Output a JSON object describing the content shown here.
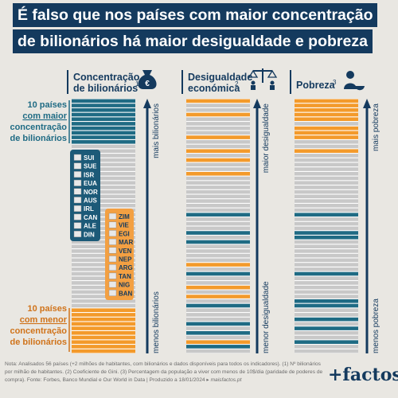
{
  "title": {
    "line1": "É falso que nos países com maior concentração",
    "line2": "de bilionários há maior desigualdade e pobreza"
  },
  "chart_data": {
    "type": "table",
    "columns": [
      {
        "label_lines": [
          "Concentração",
          "de bilionários"
        ],
        "sup": "1",
        "icon": "money-bag-euro-icon",
        "axis_top": "mais bilionários",
        "axis_bottom": "menos bilionários",
        "rows": [
          "t",
          "t",
          "t",
          "t",
          "t",
          "t",
          "t",
          "t",
          "t",
          "t",
          "g",
          "g",
          "g",
          "g",
          "g",
          "g",
          "g",
          "g",
          "g",
          "g",
          "g",
          "g",
          "g",
          "g",
          "g",
          "g",
          "g",
          "g",
          "g",
          "g",
          "g",
          "g",
          "g",
          "g",
          "g",
          "g",
          "g",
          "g",
          "g",
          "g",
          "g",
          "g",
          "g",
          "g",
          "g",
          "g",
          "o",
          "o",
          "o",
          "o",
          "o",
          "o",
          "o",
          "o",
          "o",
          "o"
        ]
      },
      {
        "label_lines": [
          "Desigualdade",
          "económica"
        ],
        "sup": "2",
        "icon": "balance-scale-people-icon",
        "axis_top": "maior desigualdade",
        "axis_bottom": "menor desigualdade",
        "rows": [
          "o",
          "g",
          "g",
          "o",
          "g",
          "g",
          "g",
          "g",
          "o",
          "g",
          "g",
          "o",
          "g",
          "o",
          "g",
          "g",
          "o",
          "g",
          "g",
          "g",
          "g",
          "g",
          "g",
          "g",
          "g",
          "t",
          "g",
          "g",
          "g",
          "t",
          "g",
          "t",
          "g",
          "g",
          "g",
          "g",
          "o",
          "g",
          "t",
          "g",
          "g",
          "o",
          "g",
          "o",
          "g",
          "t",
          "g",
          "g",
          "g",
          "t",
          "g",
          "t",
          "g",
          "o",
          "t",
          "g"
        ]
      },
      {
        "label_lines": [
          "Pobreza"
        ],
        "sup": "3",
        "icon": "poor-person-bowl-icon",
        "axis_top": "mais pobreza",
        "axis_bottom": "menos pobreza",
        "rows": [
          "o",
          "o",
          "o",
          "o",
          "o",
          "g",
          "o",
          "o",
          "o",
          "g",
          "g",
          "o",
          "g",
          "g",
          "g",
          "g",
          "g",
          "g",
          "g",
          "g",
          "g",
          "g",
          "g",
          "g",
          "g",
          "t",
          "g",
          "g",
          "g",
          "t",
          "t",
          "g",
          "g",
          "g",
          "g",
          "g",
          "g",
          "g",
          "t",
          "g",
          "g",
          "g",
          "g",
          "g",
          "t",
          "t",
          "g",
          "g",
          "t",
          "g",
          "t",
          "g",
          "g",
          "t",
          "g",
          "g"
        ]
      }
    ],
    "top_label_lines": [
      "10 países",
      "com maior",
      "concentração",
      "de bilionários"
    ],
    "bottom_label_lines": [
      "10 países",
      "com menor",
      "concentração",
      "de bilionários"
    ],
    "top_countries": [
      "SUI",
      "SUE",
      "ISR",
      "EUA",
      "NOR",
      "AUS",
      "IRL",
      "CAN",
      "ALE",
      "DIN"
    ],
    "bottom_countries": [
      "ZIM",
      "VIE",
      "EGI",
      "MAR",
      "VEN",
      "NEP",
      "ARG",
      "TAN",
      "NIG",
      "BAN"
    ],
    "colors": {
      "teal": "#1f6b84",
      "orange": "#f39a2b",
      "gray": "#c8c8c8",
      "navy": "#143a5e",
      "text_teal": "#1f6b84",
      "text_orange": "#d0731a"
    }
  },
  "note": "Nota: Analisados 56 países (+2 milhões de habitantes, com bilionários e dados disponíveis para todos os indicadores). (1) Nº bilionários por milhão de habitantes. (2) Coeficiente de Gini. (3) Percentagem da população a viver com menos de 10$/dia (paridade de poderes de compra). Fonte: Forbes, Banco Mundial e Our World in Data | Produzido a 18/01/2024",
  "source_site": "maisfactos.pt",
  "logo": "+factos"
}
